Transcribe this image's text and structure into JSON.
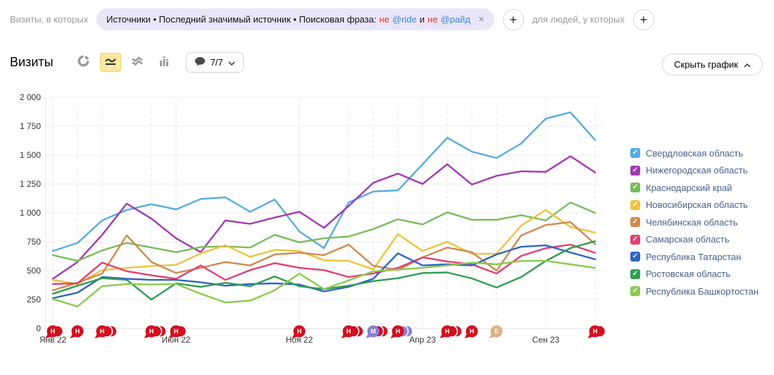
{
  "filter_bar": {
    "visits_in_which_label": "Визиты, в которых",
    "segment_pill": {
      "path_text": "Источники • Последний значимый источник • Поисковая фраза:",
      "not_1": "не",
      "term_1": "@ride",
      "conjunction": "и",
      "not_2": "не",
      "term_2": "@райд",
      "remove_symbol": "×"
    },
    "add_visit_condition_label": "+",
    "for_people_label": "для людей, у которых",
    "add_people_condition_label": "+"
  },
  "toolbar": {
    "metric_title": "Визиты",
    "chart_type_icons": [
      "pie-chart",
      "line-chart",
      "stacked-area",
      "bar-chart"
    ],
    "selected_chart_type": "line-chart",
    "annotations_dropdown": {
      "count_label": "7/7"
    },
    "hide_chart_label": "Скрыть график"
  },
  "legend": {
    "items": [
      {
        "label": "Свердловская область",
        "color": "#56abe0"
      },
      {
        "label": "Нижегородская область",
        "color": "#a238b5"
      },
      {
        "label": "Краснодарский край",
        "color": "#77bd5a"
      },
      {
        "label": "Новосибирская область",
        "color": "#efc23d"
      },
      {
        "label": "Челябинская область",
        "color": "#cf8a4e"
      },
      {
        "label": "Самарская область",
        "color": "#e43f72"
      },
      {
        "label": "Республика Татарстан",
        "color": "#2f63c6"
      },
      {
        "label": "Ростовская область",
        "color": "#2f9e4f"
      },
      {
        "label": "Республика Башкортостан",
        "color": "#8cc94f"
      }
    ]
  },
  "chart_data": {
    "type": "line",
    "title": "Визиты",
    "x": [
      "Янв 22",
      "Фев 22",
      "Мар 22",
      "Апр 22",
      "Май 22",
      "Июн 22",
      "Июл 22",
      "Авг 22",
      "Сен 22",
      "Окт 22",
      "Ноя 22",
      "Дек 22",
      "Янв 23",
      "Фев 23",
      "Мар 23",
      "Апр 23",
      "Май 23",
      "Июн 23",
      "Июл 23",
      "Авг 23",
      "Сен 23",
      "Окт 23",
      "Ноя 23"
    ],
    "x_ticks": [
      {
        "index": 0,
        "label": "Янв 22"
      },
      {
        "index": 5,
        "label": "Июн 22"
      },
      {
        "index": 10,
        "label": "Ноя 22"
      },
      {
        "index": 15,
        "label": "Апр 23"
      },
      {
        "index": 20,
        "label": "Сен 23"
      }
    ],
    "ylim": [
      0,
      2000
    ],
    "y_ticks": [
      0,
      250,
      500,
      750,
      1000,
      1250,
      1500,
      1750,
      2000
    ],
    "y_tick_labels": [
      "0",
      "250",
      "500",
      "750",
      "1 000",
      "1 250",
      "1 500",
      "1 750",
      "2 000"
    ],
    "grid": true,
    "legend_position": "right",
    "series": [
      {
        "name": "Свердловская область",
        "color": "#56abe0",
        "values": [
          670,
          740,
          935,
          1025,
          1075,
          1030,
          1120,
          1135,
          1010,
          1115,
          840,
          695,
          1090,
          1185,
          1195,
          1420,
          1650,
          1530,
          1475,
          1600,
          1815,
          1870,
          1630
        ]
      },
      {
        "name": "Нижегородская область",
        "color": "#a238b5",
        "values": [
          430,
          575,
          810,
          1080,
          950,
          780,
          660,
          935,
          905,
          960,
          1010,
          870,
          1060,
          1260,
          1340,
          1250,
          1420,
          1245,
          1320,
          1360,
          1355,
          1490,
          1350
        ]
      },
      {
        "name": "Краснодарский край",
        "color": "#77bd5a",
        "values": [
          635,
          585,
          675,
          740,
          700,
          660,
          705,
          710,
          700,
          810,
          745,
          780,
          795,
          860,
          945,
          900,
          1005,
          940,
          940,
          980,
          935,
          1090,
          1000
        ]
      },
      {
        "name": "Новосибирская область",
        "color": "#efc23d",
        "values": [
          420,
          385,
          505,
          525,
          540,
          550,
          650,
          720,
          620,
          680,
          670,
          590,
          585,
          512,
          817,
          670,
          750,
          646,
          646,
          890,
          1025,
          878,
          830
        ]
      },
      {
        "name": "Челябинская область",
        "color": "#cf8a4e",
        "values": [
          330,
          395,
          475,
          805,
          575,
          480,
          525,
          575,
          545,
          640,
          655,
          635,
          725,
          543,
          505,
          615,
          700,
          660,
          500,
          805,
          895,
          920,
          730
        ]
      },
      {
        "name": "Самарская область",
        "color": "#e43f72",
        "values": [
          385,
          390,
          570,
          495,
          460,
          430,
          545,
          420,
          505,
          565,
          525,
          505,
          445,
          476,
          524,
          615,
          580,
          555,
          475,
          628,
          695,
          725,
          655
        ]
      },
      {
        "name": "Республика Татарстан",
        "color": "#2f63c6",
        "values": [
          262,
          310,
          445,
          430,
          420,
          420,
          400,
          370,
          385,
          390,
          380,
          320,
          360,
          430,
          650,
          545,
          555,
          545,
          640,
          707,
          719,
          658,
          598
        ]
      },
      {
        "name": "Ростовская область",
        "color": "#2f9e4f",
        "values": [
          300,
          370,
          435,
          420,
          250,
          390,
          360,
          395,
          365,
          450,
          365,
          340,
          370,
          410,
          435,
          480,
          485,
          433,
          354,
          445,
          585,
          695,
          755
        ]
      },
      {
        "name": "Республика Башкортостан",
        "color": "#8cc94f",
        "values": [
          255,
          190,
          365,
          385,
          380,
          385,
          300,
          225,
          240,
          330,
          475,
          340,
          415,
          495,
          510,
          525,
          545,
          570,
          555,
          585,
          585,
          555,
          524
        ]
      }
    ],
    "annotations": [
      {
        "month_index": 0,
        "letter": "Н",
        "color": "#d30f20",
        "count": 2
      },
      {
        "month_index": 1,
        "letter": "Н",
        "color": "#d30f20",
        "count": 1
      },
      {
        "month_index": 2,
        "letter": "Н",
        "color": "#d30f20",
        "count": 3
      },
      {
        "month_index": 4,
        "letter": "Н",
        "color": "#d30f20",
        "count": 3
      },
      {
        "month_index": 5,
        "letter": "Н",
        "color": "#d30f20",
        "count": 2
      },
      {
        "month_index": 10,
        "letter": "Н",
        "color": "#d30f20",
        "count": 1
      },
      {
        "month_index": 12,
        "letter": "Н",
        "color": "#d30f20",
        "count": 3
      },
      {
        "month_index": 13,
        "letter": "М",
        "color": "#8a7fd4",
        "back_color": "#d30f20",
        "count": 3
      },
      {
        "month_index": 14,
        "letter": "Н",
        "color": "#d30f20",
        "back_color": "#8a7fd4",
        "count": 3
      },
      {
        "month_index": 16,
        "letter": "Н",
        "color": "#d30f20",
        "count": 3
      },
      {
        "month_index": 17,
        "letter": "Н",
        "color": "#d30f20",
        "count": 1
      },
      {
        "month_index": 18,
        "letter": "Е",
        "color": "#ddb083",
        "count": 1
      },
      {
        "month_index": 22,
        "letter": "Н",
        "color": "#d30f20",
        "count": 2
      }
    ]
  }
}
